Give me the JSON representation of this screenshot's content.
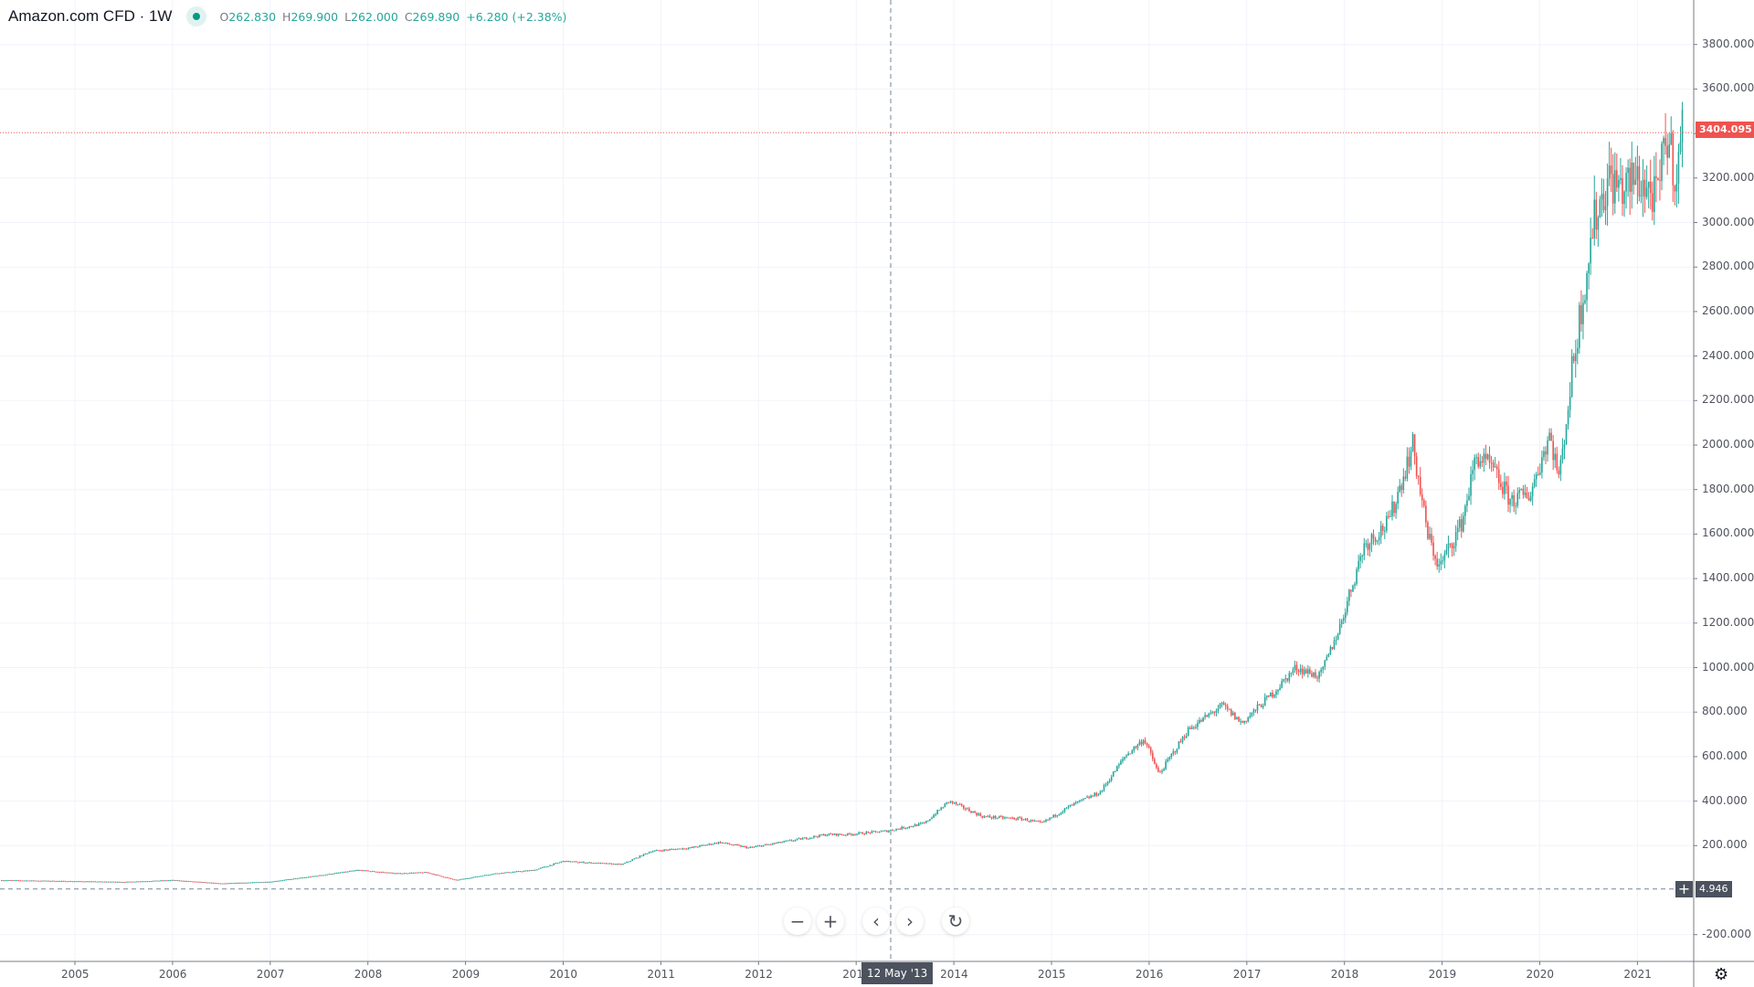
{
  "header": {
    "title": "Amazon.com CFD · 1W",
    "open_label": "O",
    "open": "262.830",
    "high_label": "H",
    "high": "269.900",
    "low_label": "L",
    "low": "262.000",
    "close_label": "C",
    "close": "269.890",
    "change": "+6.280 (+2.38%)",
    "status": "market-open"
  },
  "colors": {
    "up": "#26a69a",
    "down": "#ef5350",
    "last_price": "#ef5350",
    "crosshair": "#4c525e",
    "grid": "#f0f3fa"
  },
  "price_axis": {
    "ticks": [
      "-200.000",
      "200.000",
      "400.000",
      "600.000",
      "800.000",
      "1000.000",
      "1200.000",
      "1400.000",
      "1600.000",
      "1800.000",
      "2000.000",
      "2200.000",
      "2400.000",
      "2600.000",
      "2800.000",
      "3000.000",
      "3200.000",
      "3400.000",
      "3600.000",
      "3800.000"
    ],
    "last_price": "3404.095",
    "crosshair_price": "4.946"
  },
  "time_axis": {
    "ticks": [
      "2005",
      "2006",
      "2007",
      "2008",
      "2009",
      "2010",
      "2011",
      "2012",
      "2013",
      "2014",
      "2015",
      "2016",
      "2017",
      "2018",
      "2019",
      "2020",
      "2021"
    ],
    "crosshair_date": "12 May '13"
  },
  "controls": {
    "zoom_out": "−",
    "zoom_in": "+",
    "scroll_left": "‹",
    "scroll_right": "›",
    "reset": "↻",
    "settings": "gear-icon"
  },
  "chart_data": {
    "type": "candlestick",
    "interval": "1W",
    "ylim": [
      -300,
      3950
    ],
    "xlim": [
      2004.23,
      2021.6
    ],
    "grid": true,
    "approx_close_path": [
      [
        2004.25,
        45
      ],
      [
        2005.0,
        40
      ],
      [
        2005.5,
        37
      ],
      [
        2006.0,
        45
      ],
      [
        2006.5,
        30
      ],
      [
        2007.0,
        38
      ],
      [
        2007.4,
        60
      ],
      [
        2007.9,
        90
      ],
      [
        2008.3,
        75
      ],
      [
        2008.6,
        80
      ],
      [
        2008.9,
        45
      ],
      [
        2009.3,
        75
      ],
      [
        2009.7,
        90
      ],
      [
        2010.0,
        130
      ],
      [
        2010.4,
        120
      ],
      [
        2010.6,
        115
      ],
      [
        2010.9,
        175
      ],
      [
        2011.3,
        190
      ],
      [
        2011.6,
        215
      ],
      [
        2011.9,
        190
      ],
      [
        2012.3,
        220
      ],
      [
        2012.7,
        250
      ],
      [
        2012.9,
        250
      ],
      [
        2013.3,
        265
      ],
      [
        2013.7,
        300
      ],
      [
        2013.95,
        400
      ],
      [
        2014.3,
        330
      ],
      [
        2014.7,
        320
      ],
      [
        2014.9,
        300
      ],
      [
        2015.2,
        380
      ],
      [
        2015.5,
        440
      ],
      [
        2015.75,
        600
      ],
      [
        2015.95,
        680
      ],
      [
        2016.1,
        520
      ],
      [
        2016.4,
        720
      ],
      [
        2016.75,
        830
      ],
      [
        2016.95,
        750
      ],
      [
        2017.3,
        900
      ],
      [
        2017.5,
        1000
      ],
      [
        2017.75,
        960
      ],
      [
        2017.95,
        1180
      ],
      [
        2018.2,
        1550
      ],
      [
        2018.45,
        1650
      ],
      [
        2018.7,
        2000
      ],
      [
        2018.85,
        1600
      ],
      [
        2018.97,
        1450
      ],
      [
        2019.2,
        1650
      ],
      [
        2019.35,
        1950
      ],
      [
        2019.5,
        1900
      ],
      [
        2019.7,
        1750
      ],
      [
        2019.9,
        1780
      ],
      [
        2020.1,
        2050
      ],
      [
        2020.2,
        1850
      ],
      [
        2020.35,
        2400
      ],
      [
        2020.55,
        3000
      ],
      [
        2020.7,
        3200
      ],
      [
        2020.85,
        3150
      ],
      [
        2021.0,
        3200
      ],
      [
        2021.2,
        3100
      ],
      [
        2021.3,
        3400
      ],
      [
        2021.4,
        3200
      ],
      [
        2021.47,
        3450
      ]
    ]
  }
}
